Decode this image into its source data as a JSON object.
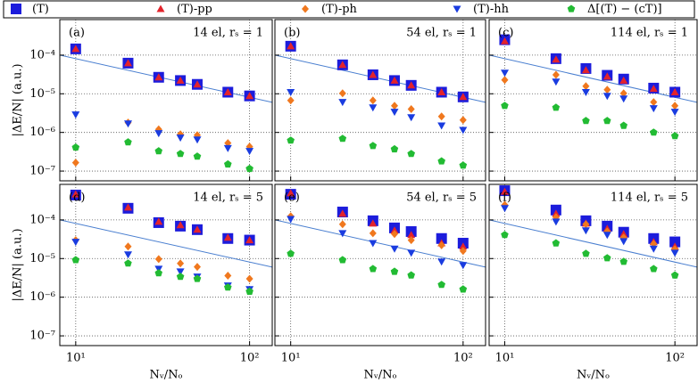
{
  "legend": [
    {
      "name": "(T)",
      "color": "#1c1cdc",
      "marker": "square"
    },
    {
      "name": "(T)-pp",
      "color": "#e3232b",
      "marker": "triangle"
    },
    {
      "name": "(T)-ph",
      "color": "#f0781e",
      "marker": "diamond"
    },
    {
      "name": "(T)-hh",
      "color": "#1a3ce0",
      "marker": "triangle-down"
    },
    {
      "name": "Δ[(T) − (cT)]",
      "color": "#22bb33",
      "marker": "pentagon"
    }
  ],
  "chart_data": [
    {
      "type": "scatter",
      "panel": "(a)",
      "annotation": "14 el, rₛ = 1",
      "ylabel": "|ΔE/N| (a.u.)",
      "x": [
        10,
        20,
        30,
        40,
        50,
        75,
        100
      ],
      "series": [
        {
          "values": [
            0.000145,
            6.2e-05,
            2.67e-05,
            2.2e-05,
            1.75e-05,
            1.1e-05,
            8.8e-06
          ]
        },
        {
          "values": [
            0.000145,
            6.2e-05,
            2.67e-05,
            2.2e-05,
            1.75e-05,
            1.1e-05,
            8.8e-06
          ]
        },
        {
          "values": [
            1.65e-07,
            1.8e-06,
            1.2e-06,
            9e-07,
            8.5e-07,
            5.3e-07,
            4.3e-07
          ]
        },
        {
          "values": [
            2.9e-06,
            1.7e-06,
            9.5e-07,
            7.3e-07,
            6.5e-07,
            3.9e-07,
            3.3e-07
          ]
        },
        {
          "values": [
            4.1e-07,
            5.6e-07,
            3.3e-07,
            2.8e-07,
            2.4e-07,
            1.5e-07,
            1.15e-07
          ]
        }
      ],
      "guide": {
        "x": [
          8.1,
          135
        ],
        "values": [
          0.0001,
          6e-06
        ],
        "color": "#4a7fd0"
      },
      "xlim": [
        8.1,
        135
      ],
      "ylim": [
        5.6e-08,
        0.00083
      ],
      "log_x": true,
      "log_y": true,
      "grid": true,
      "xticks": [
        10,
        100
      ],
      "yticks": [
        {
          "value": 1e-07,
          "label": "10⁻⁷"
        },
        {
          "value": 1e-06,
          "label": "10⁻⁶"
        },
        {
          "value": 1e-05,
          "label": "10⁻⁵"
        },
        {
          "value": 0.0001,
          "label": "10⁻⁴"
        }
      ]
    },
    {
      "type": "scatter",
      "panel": "(b)",
      "annotation": "54 el, rₛ = 1",
      "x": [
        10,
        20,
        30,
        40,
        50,
        75,
        100
      ],
      "series": [
        {
          "values": [
            0.00017,
            5.6e-05,
            3.1e-05,
            2.2e-05,
            1.65e-05,
            1.1e-05,
            8.3e-06
          ]
        },
        {
          "values": [
            0.00017,
            5.6e-05,
            3.1e-05,
            2.2e-05,
            1.65e-05,
            1.1e-05,
            8.3e-06
          ]
        },
        {
          "values": [
            6.7e-06,
            1.03e-05,
            6.7e-06,
            4.9e-06,
            4e-06,
            2.6e-06,
            2.1e-06
          ]
        },
        {
          "values": [
            1.1e-05,
            6.1e-06,
            4.4e-06,
            3.4e-06,
            2.45e-06,
            1.5e-06,
            1.15e-06
          ]
        },
        {
          "values": [
            6.2e-07,
            6.9e-07,
            4.5e-07,
            3.7e-07,
            2.8e-07,
            1.8e-07,
            1.4e-07
          ]
        }
      ],
      "guide": {
        "x": [
          8.1,
          135
        ],
        "values": [
          0.0001,
          6e-06
        ],
        "color": "#4a7fd0"
      },
      "xlim": [
        8.1,
        135
      ],
      "ylim": [
        5.6e-08,
        0.00083
      ],
      "log_x": true,
      "log_y": true,
      "grid": true,
      "xticks": [
        10,
        100
      ],
      "yticks": [
        1e-07,
        1e-06,
        1e-05,
        0.0001
      ]
    },
    {
      "type": "scatter",
      "panel": "(c)",
      "annotation": "114 el, rₛ = 1",
      "x": [
        10,
        20,
        30,
        40,
        50,
        75,
        100
      ],
      "series": [
        {
          "values": [
            0.00025,
            8.1e-05,
            4.5e-05,
            3e-05,
            2.4e-05,
            1.4e-05,
            1.1e-05
          ]
        },
        {
          "values": [
            0.00023,
            7.7e-05,
            4.1e-05,
            2.8e-05,
            2.2e-05,
            1.35e-05,
            1.1e-05
          ]
        },
        {
          "values": [
            2.27e-05,
            3.1e-05,
            1.57e-05,
            1.27e-05,
            1.03e-05,
            6.1e-06,
            4.9e-06
          ]
        },
        {
          "values": [
            3.5e-05,
            2.05e-05,
            1.1e-05,
            8.8e-06,
            7.5e-06,
            4.2e-06,
            3.4e-06
          ]
        },
        {
          "values": [
            4.9e-06,
            4.4e-06,
            2e-06,
            2e-06,
            1.5e-06,
            1e-06,
            8.1e-07
          ]
        }
      ],
      "guide": {
        "x": [
          8.1,
          135
        ],
        "values": [
          0.0001,
          6e-06
        ],
        "color": "#4a7fd0"
      },
      "xlim": [
        8.1,
        135
      ],
      "ylim": [
        5.6e-08,
        0.00083
      ],
      "log_x": true,
      "log_y": true,
      "grid": true,
      "xticks": [
        10,
        100
      ],
      "yticks": [
        1e-07,
        1e-06,
        1e-05,
        0.0001
      ]
    },
    {
      "type": "scatter",
      "panel": "(d)",
      "annotation": "14 el, rₛ = 5",
      "ylabel": "|ΔE/N| (a.u.)",
      "xlabel": "Nᵥ/Nₒ",
      "x": [
        10,
        20,
        30,
        40,
        50,
        75,
        100
      ],
      "series": [
        {
          "values": [
            0.00044,
            0.0002,
            8.5e-05,
            6.9e-05,
            5.6e-05,
            3.3e-05,
            3e-05
          ]
        },
        {
          "values": [
            0.00046,
            0.00021,
            9e-05,
            7.3e-05,
            5.6e-05,
            3.5e-05,
            3e-05
          ]
        },
        {
          "values": [
            3e-05,
            2.05e-05,
            9.7e-06,
            7.5e-06,
            6.1e-06,
            3.6e-06,
            3e-06
          ]
        },
        {
          "values": [
            2.7e-05,
            1.27e-05,
            5.4e-06,
            4.6e-06,
            3.4e-06,
            2e-06,
            1.6e-06
          ]
        },
        {
          "values": [
            9.2e-06,
            7.5e-06,
            4.2e-06,
            3.4e-06,
            3e-06,
            1.8e-06,
            1.4e-06
          ]
        }
      ],
      "guide": {
        "x": [
          8.1,
          135
        ],
        "values": [
          0.0001,
          6e-06
        ],
        "color": "#4a7fd0"
      },
      "xlim": [
        8.1,
        135
      ],
      "ylim": [
        5.6e-08,
        0.00083
      ],
      "log_x": true,
      "log_y": true,
      "grid": true,
      "xticks": [
        {
          "value": 10,
          "label": "10¹"
        },
        {
          "value": 100,
          "label": "10²"
        }
      ],
      "yticks": [
        {
          "value": 1e-07,
          "label": "10⁻⁷"
        },
        {
          "value": 1e-06,
          "label": "10⁻⁶"
        },
        {
          "value": 1e-05,
          "label": "10⁻⁵"
        },
        {
          "value": 0.0001,
          "label": "10⁻⁴"
        }
      ]
    },
    {
      "type": "scatter",
      "panel": "(e)",
      "annotation": "54 el, rₛ = 5",
      "xlabel": "Nᵥ/Nₒ",
      "x": [
        10,
        20,
        30,
        40,
        50,
        75,
        100
      ],
      "series": [
        {
          "values": [
            0.00046,
            0.00016,
            9.5e-05,
            6.2e-05,
            5e-05,
            3.3e-05,
            2.5e-05
          ]
        },
        {
          "values": [
            0.00049,
            0.000145,
            8.1e-05,
            5.3e-05,
            4.1e-05,
            2.5e-05,
            2.05e-05
          ]
        },
        {
          "values": [
            0.000124,
            7.7e-05,
            4.5e-05,
            4.3e-05,
            3e-05,
            2.2e-05,
            1.57e-05
          ]
        },
        {
          "values": [
            0.000105,
            4.5e-05,
            2.5e-05,
            1.8e-05,
            1.4e-05,
            8.3e-06,
            6.7e-06
          ]
        },
        {
          "values": [
            1.34e-05,
            9.2e-06,
            5.4e-06,
            4.6e-06,
            3.7e-06,
            2.1e-06,
            1.6e-06
          ]
        }
      ],
      "guide": {
        "x": [
          8.1,
          135
        ],
        "values": [
          0.0001,
          6e-06
        ],
        "color": "#4a7fd0"
      },
      "xlim": [
        8.1,
        135
      ],
      "ylim": [
        5.6e-08,
        0.00083
      ],
      "log_x": true,
      "log_y": true,
      "grid": true,
      "xticks": [
        {
          "value": 10,
          "label": "10¹"
        },
        {
          "value": 100,
          "label": "10²"
        }
      ],
      "yticks": [
        1e-07,
        1e-06,
        1e-05,
        0.0001
      ]
    },
    {
      "type": "scatter",
      "panel": "(f)",
      "annotation": "114 el, rₛ = 5",
      "xlabel": "Nᵥ/Nₒ",
      "x": [
        10,
        20,
        30,
        40,
        50,
        75,
        100
      ],
      "series": [
        {
          "values": [
            0.00057,
            0.00018,
            9.5e-05,
            6.9e-05,
            4.8e-05,
            3.3e-05,
            2.7e-05
          ]
        },
        {
          "values": [
            0.00054,
            0.000145,
            8.1e-05,
            5.9e-05,
            4.3e-05,
            2.7e-05,
            2.05e-05
          ]
        },
        {
          "values": [
            0.000245,
            0.000117,
            7.7e-05,
            5e-05,
            3.5e-05,
            2.4e-05,
            1.75e-05
          ]
        },
        {
          "values": [
            0.0002,
            9e-05,
            5.3e-05,
            4.1e-05,
            2.8e-05,
            1.8e-05,
            1.4e-05
          ]
        },
        {
          "values": [
            4.1e-05,
            2.5e-05,
            1.34e-05,
            1.03e-05,
            8.3e-06,
            5.4e-06,
            3.7e-06
          ]
        }
      ],
      "guide": {
        "x": [
          8.1,
          135
        ],
        "values": [
          0.0001,
          6e-06
        ],
        "color": "#4a7fd0"
      },
      "xlim": [
        8.1,
        135
      ],
      "ylim": [
        5.6e-08,
        0.00083
      ],
      "log_x": true,
      "log_y": true,
      "grid": true,
      "xticks": [
        {
          "value": 10,
          "label": "10¹"
        },
        {
          "value": 100,
          "label": "10²"
        }
      ],
      "yticks": [
        1e-07,
        1e-06,
        1e-05,
        0.0001
      ]
    }
  ]
}
